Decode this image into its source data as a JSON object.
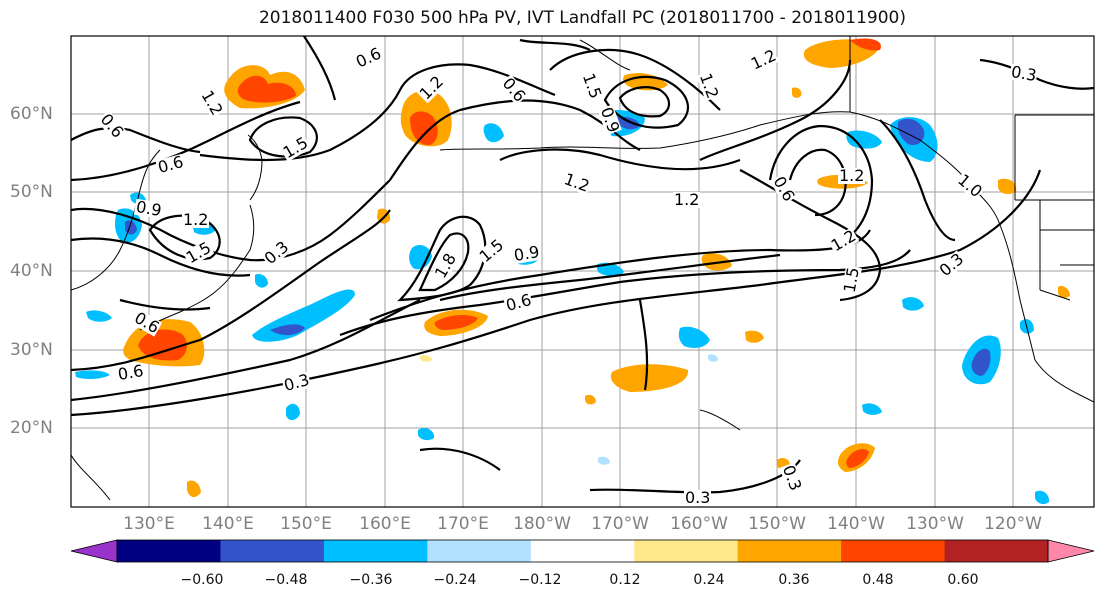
{
  "title": "2018011400 F030 500 hPa PV, IVT Landfall PC (2018011700 - 2018011900)",
  "map": {
    "lon_labels": [
      "130°E",
      "140°E",
      "150°E",
      "160°E",
      "170°E",
      "180°W",
      "170°W",
      "160°W",
      "150°W",
      "140°W",
      "130°W",
      "120°W"
    ],
    "lat_labels": [
      "60°N",
      "50°N",
      "40°N",
      "30°N",
      "20°N"
    ],
    "contour_labels": [
      {
        "text": "0.6"
      },
      {
        "text": "1.2"
      },
      {
        "text": "0.6"
      },
      {
        "text": "1.5"
      },
      {
        "text": "0.6"
      },
      {
        "text": "0.9"
      },
      {
        "text": "1.2"
      },
      {
        "text": "1.5"
      },
      {
        "text": "0.3"
      },
      {
        "text": "1.2"
      },
      {
        "text": "0.6"
      },
      {
        "text": "1.5"
      },
      {
        "text": "0.9"
      },
      {
        "text": "1.2"
      },
      {
        "text": "1.2"
      },
      {
        "text": "1.8"
      },
      {
        "text": "1.5"
      },
      {
        "text": "0.9"
      },
      {
        "text": "0.6"
      },
      {
        "text": "0.3"
      },
      {
        "text": "0.6"
      },
      {
        "text": "1.2"
      },
      {
        "text": "0.3"
      },
      {
        "text": "1.2"
      },
      {
        "text": "0.6"
      },
      {
        "text": "1.2"
      },
      {
        "text": "1.5"
      },
      {
        "text": "0.3"
      },
      {
        "text": "1.0"
      },
      {
        "text": "0.3"
      },
      {
        "text": "0.3"
      },
      {
        "text": "1.2"
      },
      {
        "text": "0.6"
      }
    ]
  },
  "colorbar": {
    "ticks": [
      "−0.60",
      "−0.48",
      "−0.36",
      "−0.24",
      "−0.12",
      "0.12",
      "0.24",
      "0.36",
      "0.48",
      "0.60"
    ],
    "colors": [
      "#9933cc",
      "#000080",
      "#3355cc",
      "#00bfff",
      "#b0e2ff",
      "#ffffff",
      "#ffe88a",
      "#ffa500",
      "#ff4500",
      "#b22222",
      "#ff88aa"
    ]
  }
}
